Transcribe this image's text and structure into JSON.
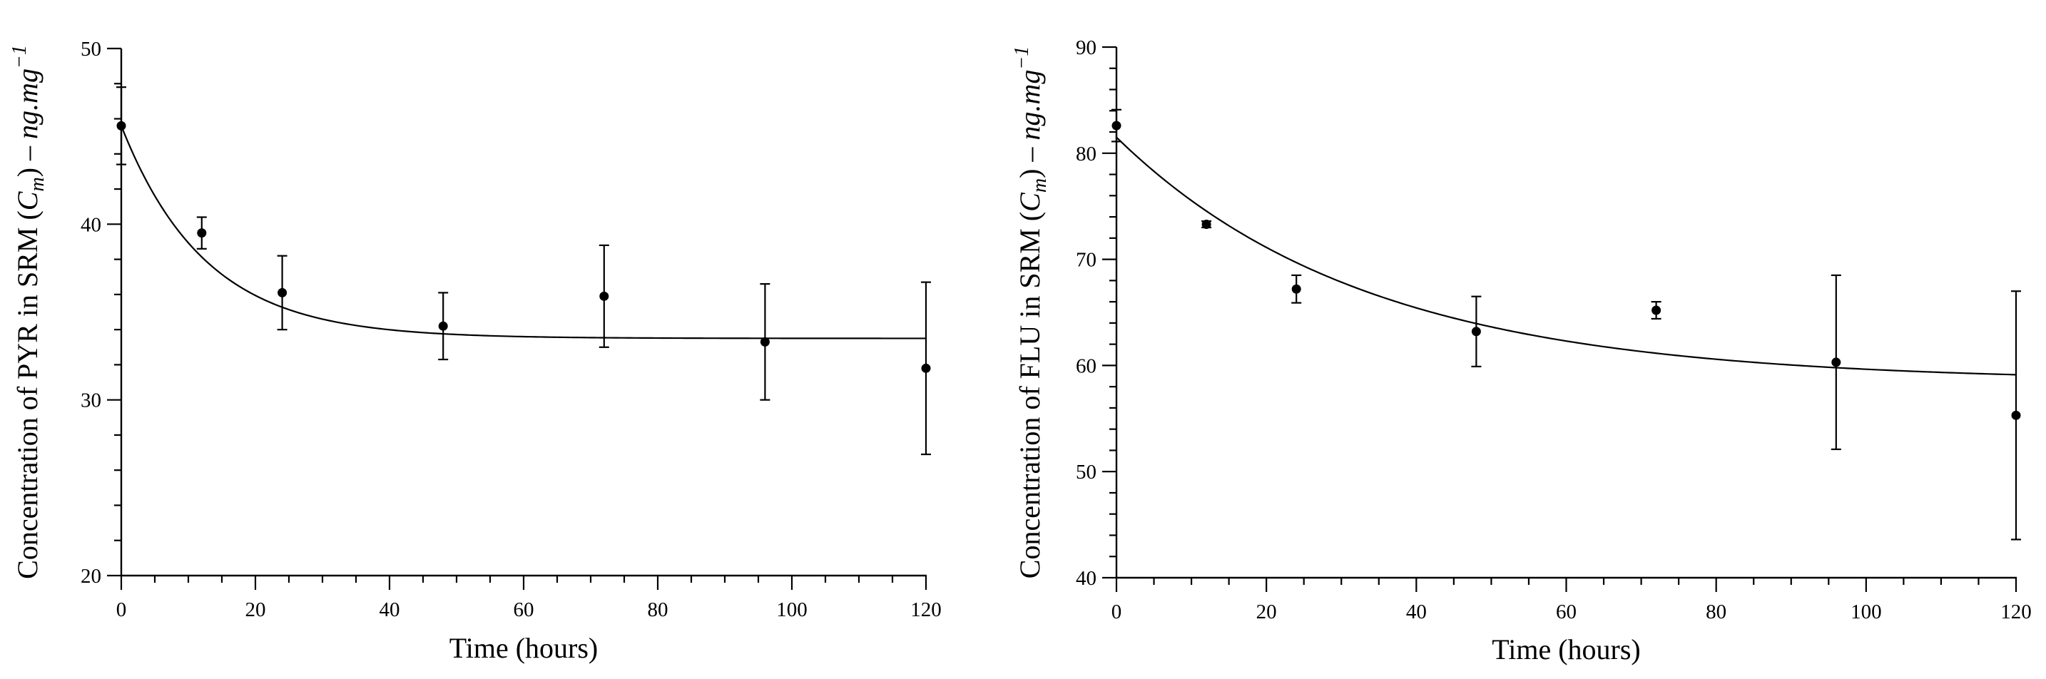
{
  "chart_data": [
    {
      "type": "scatter",
      "xlabel": "Time (hours)",
      "ylabel_parts": [
        "Concentration of PYR in SRM (",
        "C",
        "m",
        ") – ",
        "ng.mg",
        "−1"
      ],
      "xlim": [
        0,
        120
      ],
      "ylim": [
        20,
        50
      ],
      "x_ticks": [
        0,
        20,
        40,
        60,
        80,
        100,
        120
      ],
      "y_ticks": [
        20,
        30,
        40,
        50
      ],
      "x_minor_step": 5,
      "y_minor_step": 2,
      "grid": false,
      "points": [
        {
          "x": 0,
          "y": 45.6,
          "err": 2.2
        },
        {
          "x": 12,
          "y": 39.5,
          "err": 0.9
        },
        {
          "x": 24,
          "y": 36.1,
          "err": 2.1
        },
        {
          "x": 48,
          "y": 34.2,
          "err": 1.9
        },
        {
          "x": 72,
          "y": 35.9,
          "err": 2.9
        },
        {
          "x": 96,
          "y": 33.3,
          "err": 3.3
        },
        {
          "x": 120,
          "y": 31.8,
          "err": 4.9
        }
      ],
      "fit": {
        "model": "exponential decay",
        "c0": 45.6,
        "c_inf": 33.5,
        "k": 0.08
      }
    },
    {
      "type": "scatter",
      "xlabel": "Time (hours)",
      "ylabel_parts": [
        "Concentration of FLU in SRM (",
        "C",
        "m",
        ") – ",
        "ng.mg",
        "−1"
      ],
      "xlim": [
        0,
        120
      ],
      "ylim": [
        40,
        90
      ],
      "x_ticks": [
        0,
        20,
        40,
        60,
        80,
        100,
        120
      ],
      "y_ticks": [
        40,
        50,
        60,
        70,
        80,
        90
      ],
      "x_minor_step": 5,
      "y_minor_step": 2,
      "grid": false,
      "points": [
        {
          "x": 0,
          "y": 82.6,
          "err": 1.5
        },
        {
          "x": 12,
          "y": 73.3,
          "err": 0.3
        },
        {
          "x": 24,
          "y": 67.2,
          "err": 1.3
        },
        {
          "x": 48,
          "y": 63.2,
          "err": 3.3
        },
        {
          "x": 72,
          "y": 65.2,
          "err": 0.8
        },
        {
          "x": 96,
          "y": 60.3,
          "err": 8.2
        },
        {
          "x": 120,
          "y": 55.3,
          "err": 11.7
        }
      ],
      "fit": {
        "model": "exponential decay",
        "c0": 81.5,
        "c_inf": 58.5,
        "k": 0.03
      }
    }
  ]
}
